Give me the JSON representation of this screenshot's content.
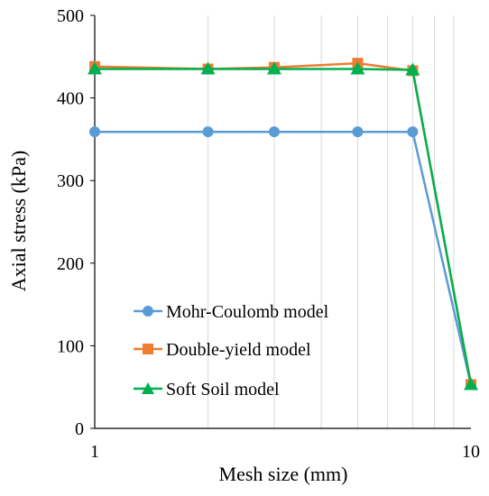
{
  "chart_data": {
    "type": "line",
    "x_scale": "log",
    "xlabel": "Mesh size (mm)",
    "ylabel": "Axial stress (kPa)",
    "xlim": [
      1,
      10
    ],
    "ylim": [
      0,
      500
    ],
    "x_ticks": [
      1,
      10
    ],
    "y_ticks": [
      0,
      100,
      200,
      300,
      400,
      500
    ],
    "grid": "vertical log minor gridlines",
    "legend_position": "lower-left",
    "x": [
      1,
      2,
      3,
      5,
      7,
      10
    ],
    "series": [
      {
        "name": "Mohr-Coulomb model",
        "marker": "circle",
        "color": "#5B9BD5",
        "x": [
          1,
          2,
          3,
          5,
          7,
          10
        ],
        "values": [
          359,
          359,
          359,
          359,
          359,
          53
        ]
      },
      {
        "name": "Double-yield model",
        "marker": "square",
        "color": "#ED7D31",
        "x": [
          1,
          2,
          3,
          5,
          7,
          10
        ],
        "values": [
          438,
          435,
          437,
          442,
          433,
          53
        ]
      },
      {
        "name": "Soft Soil model",
        "marker": "triangle",
        "color": "#00B050",
        "x": [
          1,
          2,
          3,
          5,
          7,
          10
        ],
        "values": [
          435,
          435,
          435,
          435,
          434,
          53
        ]
      }
    ]
  }
}
